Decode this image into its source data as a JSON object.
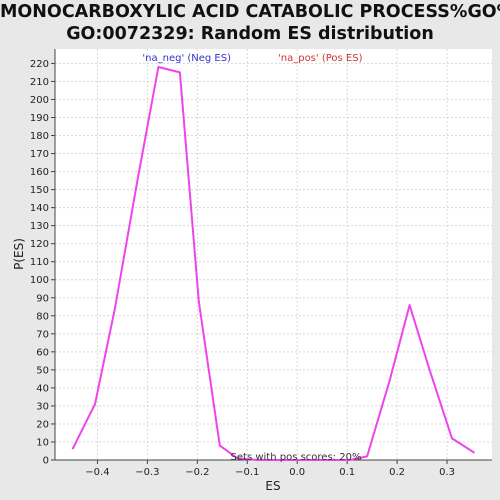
{
  "chart_data": {
    "type": "line",
    "title_line1": "MONOCARBOXYLIC ACID CATABOLIC PROCESS%GO%",
    "title_line2": "GO:0072329: Random ES distribution",
    "xlabel": "ES",
    "ylabel": "P(ES)",
    "xlim": [
      -0.485,
      0.39
    ],
    "ylim": [
      0,
      228
    ],
    "x_ticks": [
      -0.4,
      -0.3,
      -0.2,
      -0.1,
      0.0,
      0.1,
      0.2,
      0.3
    ],
    "x_tick_labels": [
      "−0.4",
      "−0.3",
      "−0.2",
      "−0.1",
      "0.0",
      "0.1",
      "0.2",
      "0.3"
    ],
    "y_ticks": [
      0,
      10,
      20,
      30,
      40,
      50,
      60,
      70,
      80,
      90,
      100,
      110,
      120,
      130,
      140,
      150,
      160,
      170,
      180,
      190,
      200,
      210,
      220
    ],
    "grid": true,
    "legend": [
      {
        "label": "'na_neg' (Neg ES)",
        "color": "#3333cc"
      },
      {
        "label": "'na_pos' (Pos ES)",
        "color": "#cc3333"
      }
    ],
    "legend_placement": "top-center",
    "annotation": "Sets with pos scores: 20%",
    "line_color": "#ee44ee",
    "series": [
      {
        "x": [
          -0.45,
          -0.405,
          -0.365,
          -0.32,
          -0.278,
          -0.235,
          -0.197,
          -0.155,
          -0.12,
          -0.08,
          -0.04,
          0.0,
          0.04,
          0.08,
          0.105,
          0.14,
          0.185,
          0.225,
          0.265,
          0.31,
          0.355
        ],
        "y": [
          6,
          31,
          84,
          155,
          218,
          215,
          88,
          8,
          1,
          0,
          0,
          0,
          0,
          0,
          0,
          2,
          44,
          86,
          50,
          12,
          4
        ]
      }
    ]
  }
}
